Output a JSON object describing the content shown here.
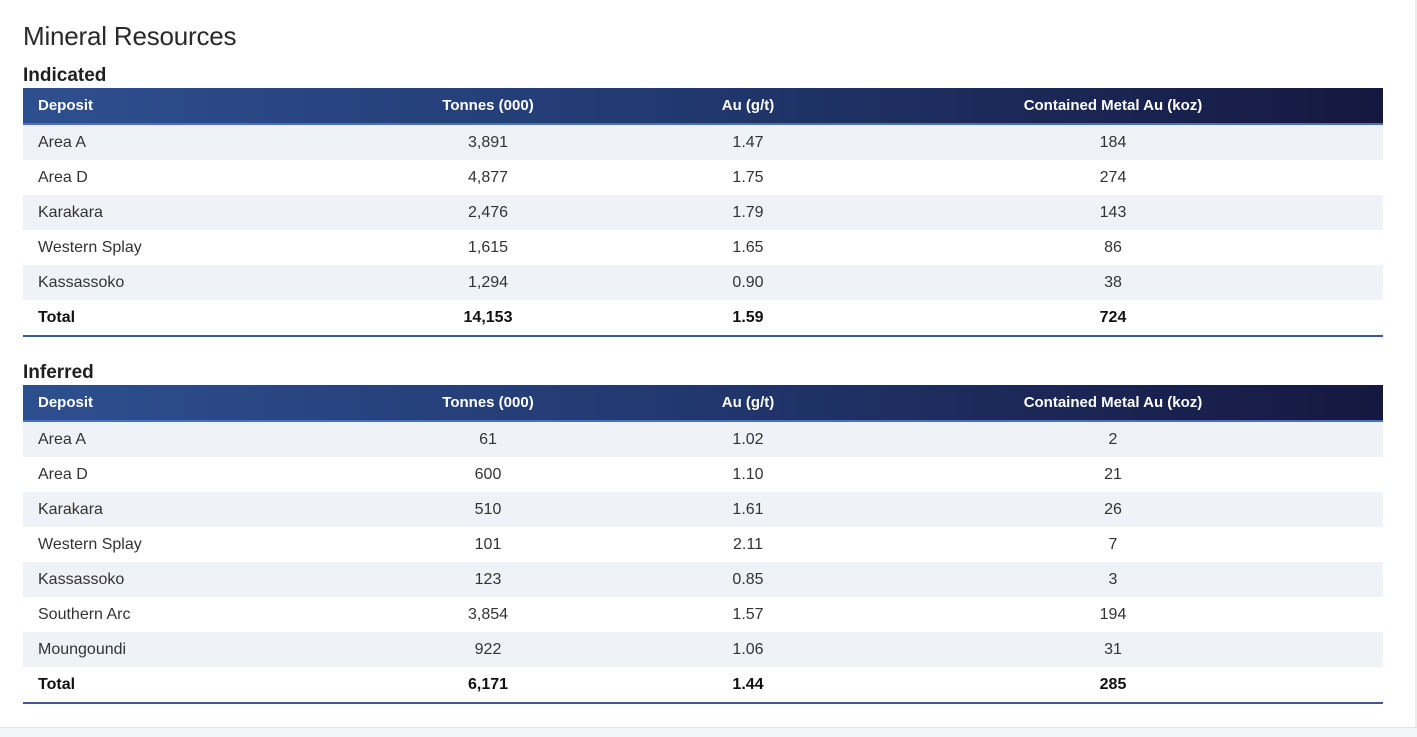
{
  "page": {
    "title": "Mineral Resources"
  },
  "columns": {
    "deposit": "Deposit",
    "tonnes": "Tonnes (000)",
    "au": "Au (g/t)",
    "metal": "Contained Metal Au (koz)"
  },
  "indicated": {
    "heading": "Indicated",
    "rows": [
      {
        "deposit": "Area A",
        "tonnes": "3,891",
        "au": "1.47",
        "metal": "184"
      },
      {
        "deposit": "Area D",
        "tonnes": "4,877",
        "au": "1.75",
        "metal": "274"
      },
      {
        "deposit": "Karakara",
        "tonnes": "2,476",
        "au": "1.79",
        "metal": "143"
      },
      {
        "deposit": "Western Splay",
        "tonnes": "1,615",
        "au": "1.65",
        "metal": "86"
      },
      {
        "deposit": "Kassassoko",
        "tonnes": "1,294",
        "au": "0.90",
        "metal": "38"
      }
    ],
    "total": {
      "deposit": "Total",
      "tonnes": "14,153",
      "au": "1.59",
      "metal": "724"
    }
  },
  "inferred": {
    "heading": "Inferred",
    "rows": [
      {
        "deposit": "Area A",
        "tonnes": "61",
        "au": "1.02",
        "metal": "2"
      },
      {
        "deposit": "Area D",
        "tonnes": "600",
        "au": "1.10",
        "metal": "21"
      },
      {
        "deposit": "Karakara",
        "tonnes": "510",
        "au": "1.61",
        "metal": "26"
      },
      {
        "deposit": "Western Splay",
        "tonnes": "101",
        "au": "2.11",
        "metal": "7"
      },
      {
        "deposit": "Kassassoko",
        "tonnes": "123",
        "au": "0.85",
        "metal": "3"
      },
      {
        "deposit": "Southern Arc",
        "tonnes": "3,854",
        "au": "1.57",
        "metal": "194"
      },
      {
        "deposit": "Moungoundi",
        "tonnes": "922",
        "au": "1.06",
        "metal": "31"
      }
    ],
    "total": {
      "deposit": "Total",
      "tonnes": "6,171",
      "au": "1.44",
      "metal": "285"
    }
  },
  "colors": {
    "header_start": "#2e4f8f",
    "header_end": "#15183f",
    "row_alt": "#eff2f7",
    "rule": "#3b5b98"
  }
}
